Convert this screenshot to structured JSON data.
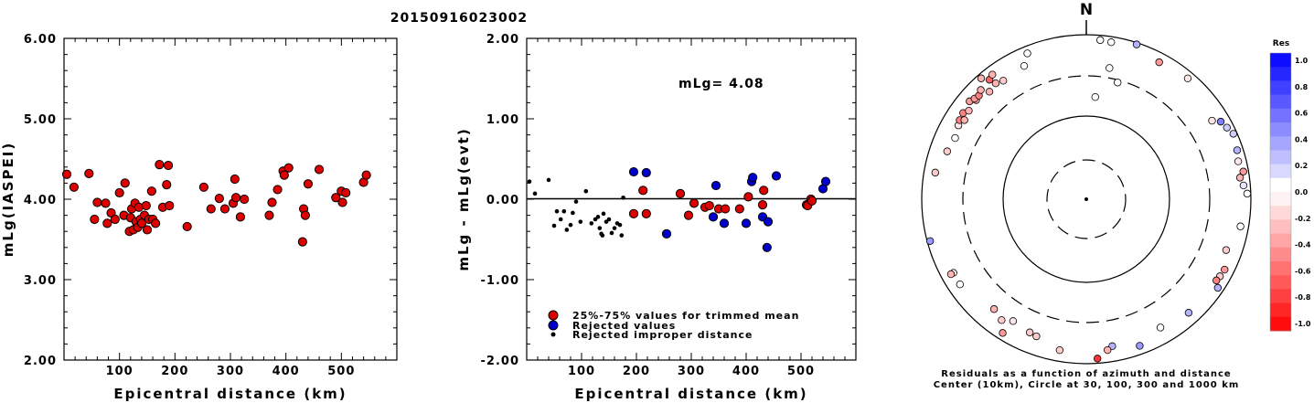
{
  "title": "20150916023002",
  "chart_data": [
    {
      "type": "scatter",
      "ylabel": "mLg(IASPEI)",
      "xlabel": "Epicentral distance (km)",
      "xlim": [
        0,
        600
      ],
      "ylim": [
        2.0,
        6.0
      ],
      "xticks": [
        "100",
        "200",
        "300",
        "400",
        "500"
      ],
      "yticks": [
        "2.00",
        "3.00",
        "4.00",
        "5.00",
        "6.00"
      ],
      "marker_color": "#dd0000",
      "points": [
        [
          5,
          4.31
        ],
        [
          18,
          4.15
        ],
        [
          45,
          4.32
        ],
        [
          55,
          3.75
        ],
        [
          60,
          3.96
        ],
        [
          75,
          3.95
        ],
        [
          78,
          3.7
        ],
        [
          85,
          3.83
        ],
        [
          92,
          3.75
        ],
        [
          100,
          4.08
        ],
        [
          108,
          3.8
        ],
        [
          110,
          4.2
        ],
        [
          118,
          3.6
        ],
        [
          120,
          3.77
        ],
        [
          122,
          3.88
        ],
        [
          125,
          3.62
        ],
        [
          128,
          3.95
        ],
        [
          130,
          3.72
        ],
        [
          133,
          3.65
        ],
        [
          135,
          3.9
        ],
        [
          138,
          3.75
        ],
        [
          140,
          3.7
        ],
        [
          145,
          3.8
        ],
        [
          148,
          3.92
        ],
        [
          150,
          3.62
        ],
        [
          153,
          3.75
        ],
        [
          158,
          4.1
        ],
        [
          160,
          3.75
        ],
        [
          165,
          3.7
        ],
        [
          172,
          4.43
        ],
        [
          178,
          3.9
        ],
        [
          185,
          4.18
        ],
        [
          188,
          4.42
        ],
        [
          190,
          3.92
        ],
        [
          222,
          3.66
        ],
        [
          252,
          4.15
        ],
        [
          265,
          3.88
        ],
        [
          280,
          4.01
        ],
        [
          290,
          3.88
        ],
        [
          305,
          3.95
        ],
        [
          308,
          4.25
        ],
        [
          310,
          4.02
        ],
        [
          318,
          3.78
        ],
        [
          325,
          4.0
        ],
        [
          370,
          3.8
        ],
        [
          375,
          3.96
        ],
        [
          385,
          4.12
        ],
        [
          395,
          4.35
        ],
        [
          397,
          4.3
        ],
        [
          405,
          4.39
        ],
        [
          430,
          3.47
        ],
        [
          432,
          3.88
        ],
        [
          435,
          3.8
        ],
        [
          440,
          4.19
        ],
        [
          460,
          4.37
        ],
        [
          490,
          4.02
        ],
        [
          500,
          4.1
        ],
        [
          502,
          3.96
        ],
        [
          508,
          4.08
        ],
        [
          540,
          4.21
        ],
        [
          545,
          4.3
        ]
      ]
    },
    {
      "type": "scatter",
      "ylabel": "mLg - mLg(evt)",
      "xlabel": "Epicentral distance (km)",
      "xlim": [
        0,
        600
      ],
      "ylim": [
        -2.0,
        2.0
      ],
      "xticks": [
        "100",
        "200",
        "300",
        "400",
        "500"
      ],
      "yticks": [
        "-2.00",
        "-1.00",
        "0.00",
        "1.00",
        "2.00"
      ],
      "annotation": "mLg= 4.08",
      "legend": [
        {
          "label": "25%-75% values for trimmed mean",
          "color": "#dd0000"
        },
        {
          "label": "Rejected values",
          "color": "#0000cc"
        },
        {
          "label": "Rejected improper distance",
          "color": "#000000"
        }
      ],
      "used": [
        [
          195,
          -0.18
        ],
        [
          212,
          0.11
        ],
        [
          218,
          -0.18
        ],
        [
          280,
          0.07
        ],
        [
          295,
          -0.2
        ],
        [
          305,
          -0.05
        ],
        [
          325,
          -0.1
        ],
        [
          333,
          -0.08
        ],
        [
          350,
          -0.12
        ],
        [
          362,
          -0.12
        ],
        [
          388,
          -0.12
        ],
        [
          404,
          0.03
        ],
        [
          430,
          -0.07
        ],
        [
          432,
          0.11
        ],
        [
          510,
          -0.07
        ],
        [
          512,
          -0.08
        ],
        [
          518,
          0.0
        ],
        [
          520,
          -0.02
        ]
      ],
      "rejected": [
        [
          195,
          0.34
        ],
        [
          218,
          0.33
        ],
        [
          255,
          -0.43
        ],
        [
          340,
          -0.22
        ],
        [
          345,
          0.17
        ],
        [
          360,
          -0.3
        ],
        [
          400,
          -0.3
        ],
        [
          410,
          0.22
        ],
        [
          412,
          0.27
        ],
        [
          430,
          -0.22
        ],
        [
          438,
          -0.6
        ],
        [
          440,
          -0.28
        ],
        [
          455,
          0.29
        ],
        [
          540,
          0.13
        ],
        [
          545,
          0.22
        ]
      ],
      "improper": [
        [
          5,
          0.22
        ],
        [
          15,
          0.07
        ],
        [
          40,
          0.24
        ],
        [
          50,
          -0.33
        ],
        [
          55,
          -0.15
        ],
        [
          62,
          -0.25
        ],
        [
          68,
          -0.15
        ],
        [
          73,
          -0.38
        ],
        [
          80,
          -0.32
        ],
        [
          84,
          -0.17
        ],
        [
          90,
          -0.03
        ],
        [
          98,
          -0.28
        ],
        [
          108,
          0.1
        ],
        [
          118,
          -0.3
        ],
        [
          125,
          -0.25
        ],
        [
          130,
          -0.22
        ],
        [
          133,
          -0.36
        ],
        [
          136,
          -0.43
        ],
        [
          138,
          -0.45
        ],
        [
          140,
          -0.18
        ],
        [
          145,
          -0.28
        ],
        [
          150,
          -0.25
        ],
        [
          155,
          -0.42
        ],
        [
          160,
          -0.36
        ],
        [
          165,
          -0.3
        ],
        [
          170,
          -0.32
        ],
        [
          173,
          -0.45
        ],
        [
          176,
          0.02
        ]
      ]
    },
    {
      "type": "polar-scatter",
      "north_label": "N",
      "caption_line1": "Residuals as a function of azimuth and distance",
      "caption_line2": "Center (10km), Circle at 30, 100, 300 and 1000 km",
      "colorbar_title": "Res",
      "colorbar_ticks": [
        "1.0",
        "0.8",
        "0.6",
        "0.4",
        "0.2",
        "0.0",
        "-0.2",
        "-0.4",
        "-0.6",
        "-0.8",
        "-1.0"
      ],
      "points_azimuth_deg_distance_km_residual": [
        [
          325,
          560,
          -0.2
        ],
        [
          318,
          560,
          -0.3
        ],
        [
          335,
          600,
          0.0
        ],
        [
          5,
          870,
          0.0
        ],
        [
          9,
          850,
          0.0
        ],
        [
          18,
          950,
          0.3
        ],
        [
          40,
          820,
          -0.1
        ],
        [
          28,
          760,
          -0.4
        ],
        [
          58,
          620,
          -0.1
        ],
        [
          60,
          760,
          0.5
        ],
        [
          63,
          820,
          0.2
        ],
        [
          66,
          900,
          0.2
        ],
        [
          72,
          840,
          0.3
        ],
        [
          76,
          790,
          -0.1
        ],
        [
          80,
          860,
          -0.4
        ],
        [
          82,
          760,
          -0.3
        ],
        [
          85,
          820,
          0.1
        ],
        [
          88,
          900,
          0.0
        ],
        [
          100,
          790,
          0.0
        ],
        [
          110,
          630,
          -0.2
        ],
        [
          117,
          760,
          -0.4
        ],
        [
          120,
          740,
          -0.2
        ],
        [
          122,
          720,
          -0.5
        ],
        [
          124,
          840,
          0.3
        ],
        [
          138,
          710,
          0.3
        ],
        [
          150,
          620,
          0.0
        ],
        [
          160,
          780,
          0.4
        ],
        [
          170,
          640,
          0.3
        ],
        [
          172,
          700,
          -0.3
        ],
        [
          176,
          870,
          -0.8
        ],
        [
          190,
          720,
          -0.2
        ],
        [
          200,
          580,
          -0.2
        ],
        [
          211,
          520,
          -0.1
        ],
        [
          203,
          560,
          -0.2
        ],
        [
          215,
          610,
          -0.2
        ],
        [
          220,
          540,
          -0.3
        ],
        [
          212,
          820,
          -0.4
        ],
        [
          236,
          700,
          0.0
        ],
        [
          241,
          690,
          -0.1
        ],
        [
          241,
          750,
          -0.3
        ],
        [
          255,
          920,
          0.4
        ],
        [
          280,
          720,
          -0.2
        ],
        [
          289,
          600,
          -0.2
        ],
        [
          295,
          560,
          0.0
        ],
        [
          300,
          610,
          -0.1
        ],
        [
          302,
          640,
          -0.5
        ],
        [
          303,
          570,
          -0.3
        ],
        [
          305,
          660,
          -0.5
        ],
        [
          307,
          600,
          -0.3
        ],
        [
          310,
          700,
          -0.4
        ],
        [
          312,
          620,
          -0.3
        ],
        [
          312,
          660,
          -0.4
        ],
        [
          314,
          640,
          -0.5
        ],
        [
          316,
          690,
          -0.3
        ],
        [
          319,
          880,
          -0.3
        ],
        [
          321,
          730,
          -0.6
        ],
        [
          323,
          780,
          -0.3
        ],
        [
          338,
          810,
          0.0
        ],
        [
          10,
          400,
          0.0
        ],
        [
          15,
          280,
          0.0
        ],
        [
          5,
          170,
          0.0
        ],
        [
          322,
          600,
          -0.3
        ]
      ]
    }
  ]
}
